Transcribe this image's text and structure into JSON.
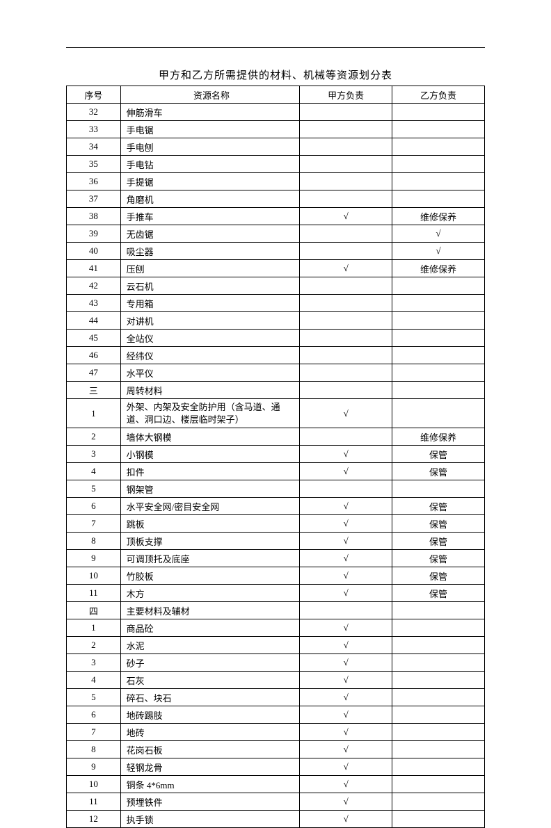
{
  "title": "甲方和乙方所需提供的材料、机械等资源划分表",
  "headers": {
    "seq": "序号",
    "name": "资源名称",
    "partyA": "甲方负责",
    "partyB": "乙方负责"
  },
  "rows": [
    {
      "seq": "32",
      "name": "伸筋滑车",
      "a": "",
      "b": ""
    },
    {
      "seq": "33",
      "name": "手电锯",
      "a": "",
      "b": ""
    },
    {
      "seq": "34",
      "name": "手电刨",
      "a": "",
      "b": ""
    },
    {
      "seq": "35",
      "name": "手电钻",
      "a": "",
      "b": ""
    },
    {
      "seq": "36",
      "name": "手提锯",
      "a": "",
      "b": ""
    },
    {
      "seq": "37",
      "name": "角磨机",
      "a": "",
      "b": ""
    },
    {
      "seq": "38",
      "name": "手推车",
      "a": "√",
      "b": "维修保养"
    },
    {
      "seq": "39",
      "name": "无齿锯",
      "a": "",
      "b": "√"
    },
    {
      "seq": "40",
      "name": "吸尘器",
      "a": "",
      "b": "√"
    },
    {
      "seq": "41",
      "name": "压刨",
      "a": "√",
      "b": "维修保养"
    },
    {
      "seq": "42",
      "name": "云石机",
      "a": "",
      "b": ""
    },
    {
      "seq": "43",
      "name": "专用箱",
      "a": "",
      "b": ""
    },
    {
      "seq": "44",
      "name": "对讲机",
      "a": "",
      "b": ""
    },
    {
      "seq": "45",
      "name": "全站仪",
      "a": "",
      "b": ""
    },
    {
      "seq": "46",
      "name": "经纬仪",
      "a": "",
      "b": ""
    },
    {
      "seq": "47",
      "name": "水平仪",
      "a": "",
      "b": ""
    },
    {
      "seq": "三",
      "name": "周转材料",
      "a": "",
      "b": ""
    },
    {
      "seq": "1",
      "name": "外架、内架及安全防护用（含马道、通道、洞口边、楼层临时架子）",
      "a": "√",
      "b": "",
      "wrap": true
    },
    {
      "seq": "2",
      "name": "墙体大钢模",
      "a": "",
      "b": "维修保养"
    },
    {
      "seq": "3",
      "name": "小钢模",
      "a": "√",
      "b": "保管"
    },
    {
      "seq": "4",
      "name": "扣件",
      "a": "√",
      "b": "保管"
    },
    {
      "seq": "5",
      "name": "钢架管",
      "a": "",
      "b": ""
    },
    {
      "seq": "6",
      "name": "水平安全网/密目安全网",
      "a": "√",
      "b": "保管"
    },
    {
      "seq": "7",
      "name": "跳板",
      "a": "√",
      "b": "保管"
    },
    {
      "seq": "8",
      "name": "顶板支撑",
      "a": "√",
      "b": "保管"
    },
    {
      "seq": "9",
      "name": "可调顶托及底座",
      "a": "√",
      "b": "保管"
    },
    {
      "seq": "10",
      "name": "竹胶板",
      "a": "√",
      "b": "保管"
    },
    {
      "seq": "11",
      "name": "木方",
      "a": "√",
      "b": "保管"
    },
    {
      "seq": "四",
      "name": "主要材料及辅材",
      "a": "",
      "b": ""
    },
    {
      "seq": "1",
      "name": "商品砼",
      "a": "√",
      "b": ""
    },
    {
      "seq": "2",
      "name": "水泥",
      "a": "√",
      "b": ""
    },
    {
      "seq": "3",
      "name": "砂子",
      "a": "√",
      "b": ""
    },
    {
      "seq": "4",
      "name": "石灰",
      "a": "√",
      "b": ""
    },
    {
      "seq": "5",
      "name": "碎石、块石",
      "a": "√",
      "b": ""
    },
    {
      "seq": "6",
      "name": "地砖踢肢",
      "a": "√",
      "b": ""
    },
    {
      "seq": "7",
      "name": "地砖",
      "a": "√",
      "b": ""
    },
    {
      "seq": "8",
      "name": "花岗石板",
      "a": "√",
      "b": ""
    },
    {
      "seq": "9",
      "name": "轻钢龙骨",
      "a": "√",
      "b": ""
    },
    {
      "seq": "10",
      "name": "铜条 4*6mm",
      "a": "√",
      "b": ""
    },
    {
      "seq": "11",
      "name": "预埋铁件",
      "a": "√",
      "b": ""
    },
    {
      "seq": "12",
      "name": "执手锁",
      "a": "√",
      "b": ""
    }
  ]
}
